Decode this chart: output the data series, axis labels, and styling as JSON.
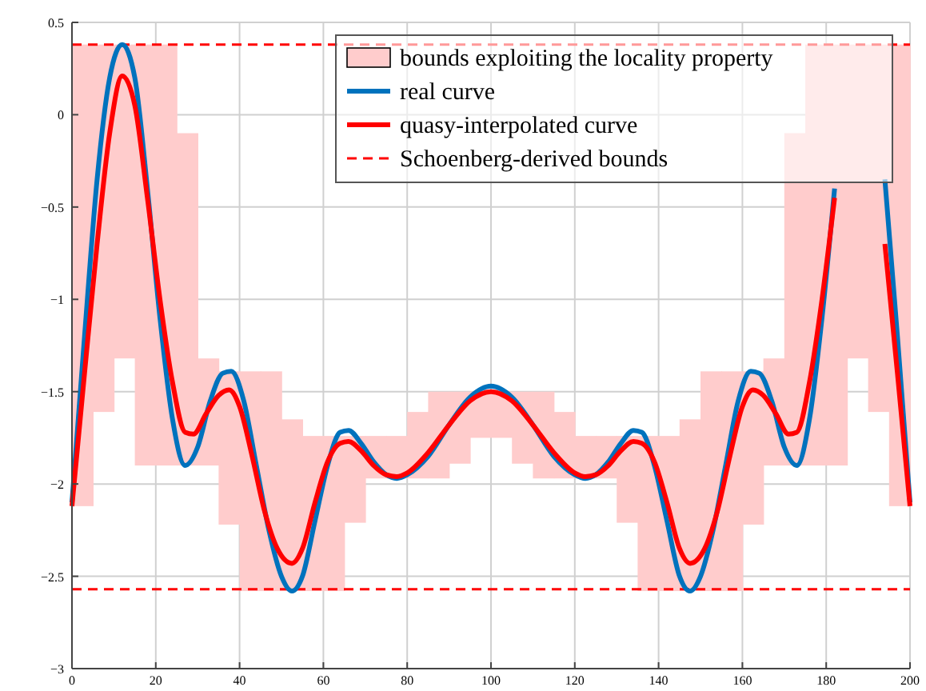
{
  "chart_data": {
    "type": "line",
    "xlim": [
      0,
      200
    ],
    "ylim": [
      -3,
      0.5
    ],
    "xticks": [
      0,
      20,
      40,
      60,
      80,
      100,
      120,
      140,
      160,
      180,
      200
    ],
    "yticks": [
      {
        "value": -3,
        "label": "−3"
      },
      {
        "value": -2.5,
        "label": "−2.5"
      },
      {
        "value": -2,
        "label": "−2"
      },
      {
        "value": -1.5,
        "label": "−1.5"
      },
      {
        "value": -1,
        "label": "−1"
      },
      {
        "value": -0.5,
        "label": "−0.5"
      },
      0,
      0.5
    ],
    "grid": true,
    "legend": "top right",
    "series": [
      {
        "type": "bar",
        "name": "bounds exploiting the locality property",
        "color": "#ffcccc",
        "x": [
          2.5,
          7.5,
          12.5,
          17.5,
          22.5,
          27.5,
          32.5,
          37.5,
          42.5,
          47.5,
          52.5,
          57.5,
          62.5,
          67.5,
          72.5,
          77.5,
          82.5,
          87.5,
          92.5,
          97.5,
          102.5,
          107.5,
          112.5,
          117.5,
          122.5,
          127.5,
          132.5,
          137.5,
          142.5,
          147.5,
          152.5,
          157.5,
          162.5,
          167.5,
          172.5,
          177.5,
          182.5,
          187.5,
          192.5,
          197.5
        ],
        "base": [
          -2.12,
          -1.61,
          -1.32,
          -1.9,
          -1.9,
          -1.9,
          -1.9,
          -2.22,
          -2.58,
          -2.58,
          -2.58,
          -2.58,
          -2.58,
          -2.21,
          -1.97,
          -1.97,
          -1.97,
          -1.97,
          -1.89,
          -1.75,
          -1.75,
          -1.89,
          -1.97,
          -1.97,
          -1.97,
          -1.97,
          -2.21,
          -2.58,
          -2.58,
          -2.58,
          -2.58,
          -2.58,
          -2.22,
          -1.9,
          -1.9,
          -1.9,
          -1.9,
          -1.32,
          -1.61,
          -2.12
        ],
        "values": [
          2.5,
          1.99,
          1.7,
          2.28,
          2.28,
          1.8,
          0.58,
          0.83,
          1.19,
          1.19,
          0.93,
          0.84,
          0.84,
          0.47,
          0.23,
          0.23,
          0.36,
          0.47,
          0.39,
          0.25,
          0.25,
          0.39,
          0.47,
          0.36,
          0.23,
          0.23,
          0.47,
          0.84,
          0.84,
          0.93,
          1.19,
          1.19,
          0.83,
          0.58,
          1.8,
          2.28,
          2.28,
          1.7,
          1.99,
          2.5
        ]
      },
      {
        "name": "real curve",
        "color": "#0072bd",
        "x": [
          0,
          3,
          6,
          9,
          12,
          15,
          18,
          21,
          24,
          27,
          30,
          33,
          36,
          38,
          41,
          44,
          47,
          50,
          52.5,
          55,
          58,
          61,
          64,
          66,
          69,
          72,
          75,
          77.5,
          80,
          85,
          90,
          95,
          100,
          105,
          110,
          115,
          120,
          122.5,
          125,
          128,
          131,
          134,
          136,
          139,
          142,
          145,
          147.5,
          150,
          153,
          156,
          159,
          162,
          164,
          167,
          170,
          173,
          176,
          179,
          182,
          185,
          188,
          191,
          194,
          197,
          200
        ],
        "values": [
          -2.1,
          -1.2,
          -0.35,
          0.2,
          0.38,
          0.2,
          -0.4,
          -1.1,
          -1.65,
          -1.9,
          -1.8,
          -1.55,
          -1.4,
          -1.39,
          -1.55,
          -1.9,
          -2.25,
          -2.5,
          -2.58,
          -2.5,
          -2.2,
          -1.9,
          -1.72,
          -1.71,
          -1.78,
          -1.88,
          -1.95,
          -1.97,
          -1.95,
          -1.85,
          -1.68,
          -1.53,
          -1.47,
          -1.53,
          -1.68,
          -1.85,
          -1.95,
          -1.97,
          -1.95,
          -1.88,
          -1.78,
          -1.71,
          -1.72,
          -1.9,
          -2.2,
          -2.5,
          -2.58,
          -2.5,
          -2.25,
          -1.9,
          -1.55,
          -1.39,
          -1.4,
          -1.55,
          -1.8,
          -1.9,
          -1.65,
          -1.1,
          -0.4,
          null,
          null,
          null,
          -0.35,
          -1.2,
          -2.1
        ]
      },
      {
        "name": "quasy-interpolated curve",
        "color": "#ff0000",
        "x": [
          0,
          3,
          6,
          9,
          12,
          15,
          18,
          21,
          24,
          27,
          29,
          32,
          35,
          37.5,
          40,
          43,
          46,
          49,
          52.5,
          55,
          58,
          61,
          64,
          66,
          69,
          72,
          75,
          77.5,
          80,
          85,
          90,
          95,
          100,
          105,
          110,
          115,
          120,
          122.5,
          125,
          128,
          131,
          134,
          136,
          139,
          142,
          145,
          147.5,
          151,
          154,
          157,
          160,
          162.5,
          165,
          168,
          171,
          173,
          176,
          179,
          182,
          185,
          188,
          191,
          194,
          197,
          200
        ],
        "values": [
          -2.12,
          -1.4,
          -0.7,
          -0.1,
          0.21,
          0.05,
          -0.45,
          -1.0,
          -1.45,
          -1.72,
          -1.73,
          -1.62,
          -1.52,
          -1.49,
          -1.58,
          -1.85,
          -2.15,
          -2.35,
          -2.43,
          -2.35,
          -2.1,
          -1.88,
          -1.78,
          -1.77,
          -1.82,
          -1.9,
          -1.95,
          -1.96,
          -1.94,
          -1.83,
          -1.68,
          -1.55,
          -1.5,
          -1.55,
          -1.68,
          -1.83,
          -1.94,
          -1.96,
          -1.95,
          -1.9,
          -1.82,
          -1.77,
          -1.78,
          -1.88,
          -2.1,
          -2.35,
          -2.43,
          -2.35,
          -2.15,
          -1.85,
          -1.58,
          -1.49,
          -1.52,
          -1.62,
          -1.73,
          -1.72,
          -1.45,
          -1.0,
          -0.45,
          null,
          null,
          null,
          -0.7,
          -1.4,
          -2.12
        ]
      }
    ],
    "ref_lines": [
      {
        "axis": "y",
        "value": 0.38,
        "label": "Schoenberg-derived bounds",
        "color": "#ff0000",
        "line_style": "dashed"
      },
      {
        "axis": "y",
        "value": -2.57,
        "color": "#ff0000",
        "line_style": "dashed"
      }
    ]
  }
}
